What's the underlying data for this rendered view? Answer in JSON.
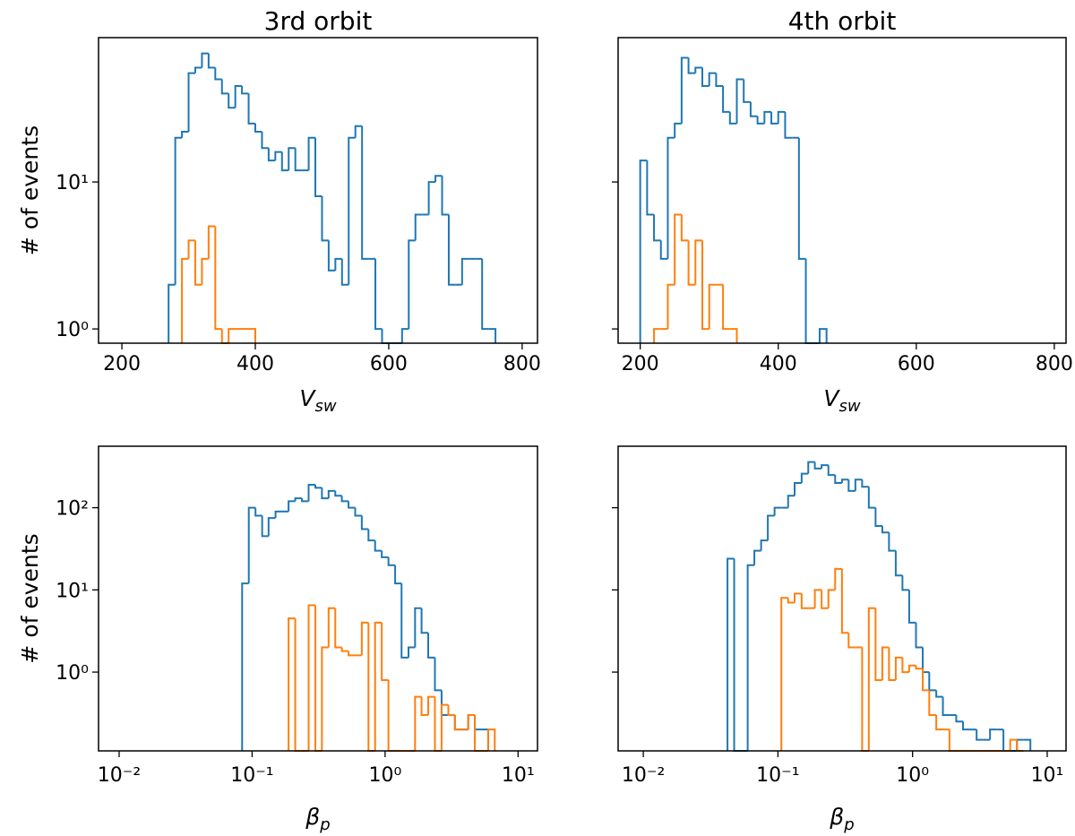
{
  "chart_data": [
    {
      "type": "histogram",
      "title": "3rd orbit",
      "xlabel": {
        "text": "V",
        "sub": "sw"
      },
      "ylabel": "# of events",
      "xscale": "linear",
      "yscale": "log",
      "xlim": [
        165,
        823
      ],
      "ylim": [
        0.8,
        96
      ],
      "xticks": [
        200,
        400,
        600,
        800
      ],
      "yticks": [
        {
          "value": 1,
          "label": "10⁰"
        },
        {
          "value": 10,
          "label": "10¹"
        }
      ],
      "ytick_labels": true,
      "series": [
        {
          "color": "#1f77b4",
          "bins": [
            270,
            280,
            290,
            300,
            310,
            320,
            330,
            340,
            350,
            360,
            370,
            380,
            390,
            400,
            410,
            420,
            430,
            440,
            450,
            460,
            470,
            480,
            490,
            500,
            510,
            520,
            530,
            540,
            550,
            560,
            570,
            580,
            590,
            600,
            610,
            620,
            630,
            640,
            650,
            660,
            670,
            680,
            690,
            700,
            710,
            720,
            730,
            740,
            750,
            760
          ],
          "values": [
            2,
            20,
            22,
            55,
            60,
            75,
            60,
            50,
            40,
            32,
            45,
            40,
            25,
            22,
            17,
            14,
            16,
            12,
            17,
            12,
            12,
            20,
            8,
            4,
            2.5,
            3,
            2,
            20,
            24,
            3,
            3,
            1,
            0,
            0,
            0,
            1,
            4,
            6,
            6,
            10,
            11,
            6,
            2,
            2,
            3,
            3,
            3,
            1,
            1
          ]
        },
        {
          "color": "#ff7f0e",
          "bins": [
            290,
            300,
            310,
            320,
            330,
            340,
            350,
            360,
            370,
            380,
            390,
            400
          ],
          "values": [
            3,
            4,
            2,
            3,
            5,
            1,
            0,
            1,
            1,
            1,
            1
          ]
        }
      ]
    },
    {
      "type": "histogram",
      "title": "4th orbit",
      "xlabel": {
        "text": "V",
        "sub": "sw"
      },
      "xscale": "linear",
      "yscale": "log",
      "xlim": [
        168,
        817
      ],
      "ylim": [
        0.8,
        96
      ],
      "xticks": [
        200,
        400,
        600,
        800
      ],
      "yticks": [
        {
          "value": 1,
          "label": "10⁰"
        },
        {
          "value": 10,
          "label": "10¹"
        }
      ],
      "ytick_labels": false,
      "series": [
        {
          "color": "#1f77b4",
          "bins": [
            200,
            210,
            220,
            230,
            240,
            250,
            260,
            270,
            280,
            290,
            300,
            310,
            320,
            330,
            340,
            350,
            360,
            370,
            380,
            390,
            400,
            410,
            420,
            430,
            440,
            450,
            460,
            470
          ],
          "values": [
            14,
            6,
            4,
            3,
            20,
            25,
            70,
            55,
            60,
            45,
            55,
            45,
            30,
            25,
            50,
            35,
            28,
            25,
            30,
            25,
            30,
            20,
            20,
            3,
            0,
            0,
            1
          ]
        },
        {
          "color": "#ff7f0e",
          "bins": [
            220,
            230,
            240,
            250,
            260,
            270,
            280,
            290,
            300,
            310,
            320,
            330,
            340
          ],
          "values": [
            1,
            1,
            2,
            6,
            4,
            2,
            4,
            1,
            2,
            2,
            1,
            1
          ]
        }
      ]
    },
    {
      "type": "histogram",
      "xlabel": {
        "text": "β",
        "sub": "p"
      },
      "ylabel": "# of events",
      "xscale": "log",
      "yscale": "log",
      "xlim": [
        0.007,
        14
      ],
      "ylim": [
        0.11,
        560
      ],
      "xticks": [
        {
          "value": 0.01,
          "label": "10⁻²"
        },
        {
          "value": 0.1,
          "label": "10⁻¹"
        },
        {
          "value": 1,
          "label": "10⁰"
        },
        {
          "value": 10,
          "label": "10¹"
        }
      ],
      "yticks": [
        {
          "value": 1,
          "label": "10⁰"
        },
        {
          "value": 10,
          "label": "10¹"
        },
        {
          "value": 100,
          "label": "10²"
        }
      ],
      "ytick_labels": true,
      "series": [
        {
          "color": "#1f77b4",
          "bins": [
            0.0841,
            0.0944,
            0.106,
            0.119,
            0.133,
            0.15,
            0.168,
            0.188,
            0.211,
            0.237,
            0.266,
            0.299,
            0.335,
            0.376,
            0.422,
            0.473,
            0.531,
            0.596,
            0.668,
            0.75,
            0.841,
            0.944,
            1.06,
            1.19,
            1.33,
            1.5,
            1.68,
            1.88,
            2.11,
            2.37,
            2.66,
            2.99,
            3.35,
            3.76,
            4.22,
            4.73,
            5.31,
            5.96
          ],
          "values": [
            12,
            100,
            80,
            45,
            75,
            90,
            90,
            120,
            130,
            120,
            190,
            175,
            130,
            160,
            140,
            120,
            100,
            80,
            55,
            40,
            30,
            25,
            20,
            12,
            1.5,
            2,
            6,
            3,
            1.5,
            0.6,
            0.3,
            0.3,
            0.2,
            0.2,
            0.3,
            0.2,
            0.2
          ]
        },
        {
          "color": "#ff7f0e",
          "bins": [
            0.188,
            0.211,
            0.237,
            0.266,
            0.299,
            0.335,
            0.376,
            0.422,
            0.473,
            0.531,
            0.596,
            0.668,
            0.75,
            0.841,
            0.944,
            1.06,
            1.19,
            1.33,
            1.5,
            1.68,
            1.88,
            2.11,
            2.37,
            2.66,
            2.99,
            3.35,
            3.76,
            4.22,
            4.73,
            5.31,
            5.96,
            6.68
          ],
          "values": [
            4.5,
            0,
            0,
            6.5,
            0,
            2,
            6,
            2,
            1.8,
            1.6,
            1.6,
            4,
            0,
            4,
            0.8,
            0,
            0,
            0,
            0,
            0.5,
            0.3,
            0.5,
            0,
            0.4,
            0.3,
            0.2,
            0.2,
            0.3,
            0,
            0,
            0.2
          ]
        }
      ]
    },
    {
      "type": "histogram",
      "xlabel": {
        "text": "β",
        "sub": "p"
      },
      "xscale": "log",
      "yscale": "log",
      "xlim": [
        0.0065,
        13.8
      ],
      "ylim": [
        0.11,
        560
      ],
      "xticks": [
        {
          "value": 0.01,
          "label": "10⁻²"
        },
        {
          "value": 0.1,
          "label": "10⁻¹"
        },
        {
          "value": 1,
          "label": "10⁰"
        },
        {
          "value": 10,
          "label": "10¹"
        }
      ],
      "yticks": [
        {
          "value": 1,
          "label": "10⁰"
        },
        {
          "value": 10,
          "label": "10¹"
        },
        {
          "value": 100,
          "label": "10²"
        }
      ],
      "ytick_labels": false,
      "series": [
        {
          "color": "#1f77b4",
          "bins": [
            0.0422,
            0.0473,
            0.0531,
            0.0596,
            0.0668,
            0.075,
            0.0841,
            0.0944,
            0.106,
            0.119,
            0.133,
            0.15,
            0.168,
            0.188,
            0.211,
            0.237,
            0.266,
            0.299,
            0.335,
            0.376,
            0.422,
            0.473,
            0.531,
            0.596,
            0.668,
            0.75,
            0.841,
            0.944,
            1.06,
            1.19,
            1.33,
            1.5,
            1.68,
            1.88,
            2.11,
            2.37,
            2.66,
            2.99,
            3.35,
            3.76,
            4.22,
            4.73,
            5.31,
            5.96,
            6.68,
            7.5
          ],
          "values": [
            24,
            0,
            0,
            20,
            30,
            40,
            80,
            100,
            100,
            140,
            200,
            260,
            360,
            300,
            330,
            250,
            200,
            220,
            160,
            220,
            180,
            100,
            60,
            50,
            30,
            15,
            10,
            4,
            2,
            1,
            0.6,
            0.5,
            0.3,
            0.3,
            0.25,
            0.2,
            0.2,
            0.15,
            0.15,
            0.2,
            0.2,
            0,
            0,
            0.15,
            0.15
          ]
        },
        {
          "color": "#ff7f0e",
          "bins": [
            0.106,
            0.119,
            0.133,
            0.15,
            0.168,
            0.188,
            0.211,
            0.237,
            0.266,
            0.299,
            0.335,
            0.376,
            0.422,
            0.473,
            0.531,
            0.596,
            0.668,
            0.75,
            0.841,
            0.944,
            1.06,
            1.19,
            1.33,
            1.5,
            1.68,
            1.88,
            2.11,
            2.37,
            2.66,
            2.99,
            3.35,
            3.76,
            4.22,
            4.73,
            5.31,
            5.96,
            6.68
          ],
          "values": [
            8,
            7,
            9,
            6,
            6,
            10,
            6,
            10,
            18,
            3,
            2,
            2,
            0,
            6,
            0.8,
            2,
            0.8,
            1.5,
            1,
            1.2,
            1.1,
            0.6,
            0.3,
            0.2,
            0.2,
            0,
            0,
            0,
            0,
            0,
            0,
            0,
            0,
            0,
            0.15,
            0
          ]
        }
      ]
    }
  ]
}
